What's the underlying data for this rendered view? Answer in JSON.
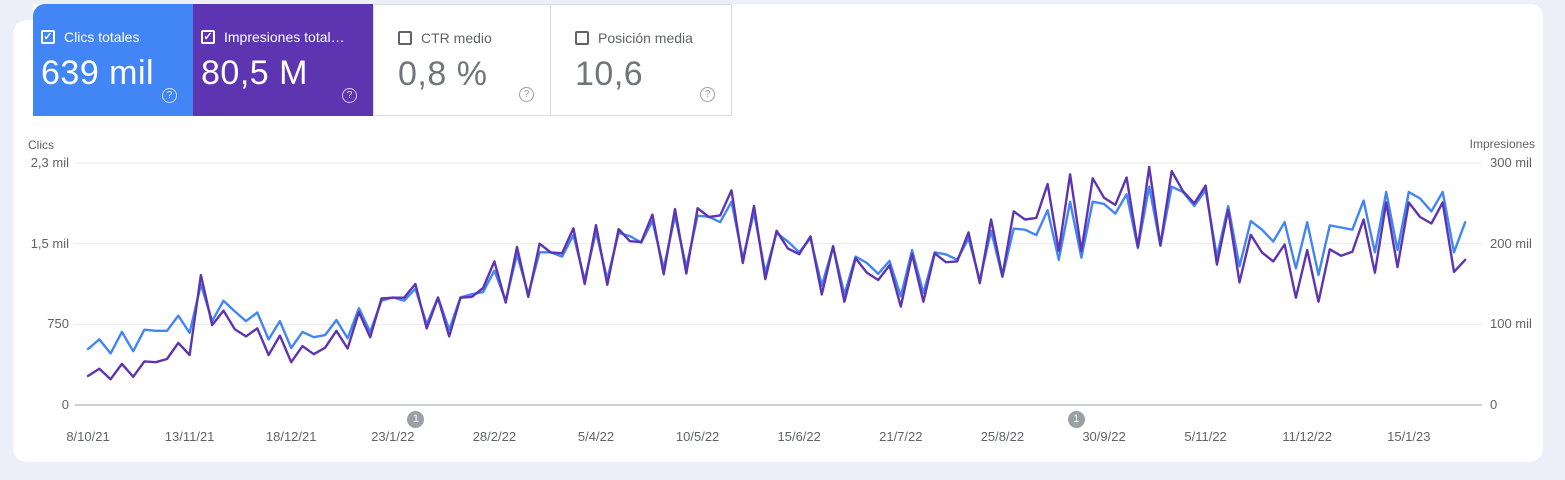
{
  "page": {
    "background_color": "#edeff8",
    "panel_color": "#ffffff",
    "help_glyph": "?",
    "check_glyph": "✓"
  },
  "metric_cards": [
    {
      "id": "clicks",
      "label": "Clics totales",
      "value": "639 mil",
      "checked": true,
      "background": "#4285f4",
      "text_color": "#ffffff"
    },
    {
      "id": "impressions",
      "label": "Impresiones total…",
      "value": "80,5 M",
      "checked": true,
      "background": "#5e35b1",
      "text_color": "#ffffff"
    },
    {
      "id": "ctr",
      "label": "CTR medio",
      "value": "0,8 %",
      "checked": false,
      "background": "#ffffff",
      "text_color": "#70757a"
    },
    {
      "id": "position",
      "label": "Posición media",
      "value": "10,6",
      "checked": false,
      "background": "#ffffff",
      "text_color": "#70757a"
    }
  ],
  "chart_data": {
    "type": "line",
    "grid": true,
    "left_axis": {
      "title": "Clics",
      "ticks": [
        "0",
        "750",
        "1,5 mil",
        "2,3 mil"
      ],
      "range": [
        0,
        2250
      ]
    },
    "right_axis": {
      "title": "Impresiones",
      "ticks": [
        "0",
        "100 mil",
        "200 mil",
        "300 mil"
      ],
      "range": [
        0,
        300000
      ],
      "values_unit": "thousands"
    },
    "x_ticks": [
      "8/10/21",
      "13/11/21",
      "18/12/21",
      "23/1/22",
      "28/2/22",
      "5/4/22",
      "10/5/22",
      "15/6/22",
      "21/7/22",
      "25/8/22",
      "30/9/22",
      "5/11/22",
      "11/12/22",
      "15/1/23"
    ],
    "x_tick_interval_days": 36,
    "sample_interval_days": 4,
    "series": [
      {
        "id": "clicks",
        "name": "Clics totales",
        "axis": "left",
        "color": "#4285f4",
        "values": [
          520,
          610,
          480,
          680,
          500,
          700,
          690,
          690,
          830,
          670,
          1120,
          780,
          970,
          870,
          780,
          860,
          610,
          780,
          530,
          680,
          630,
          650,
          790,
          620,
          900,
          680,
          970,
          1000,
          970,
          1080,
          750,
          1000,
          700,
          1000,
          1030,
          1050,
          1250,
          970,
          1400,
          1030,
          1420,
          1420,
          1380,
          1580,
          1160,
          1610,
          1170,
          1600,
          1570,
          1510,
          1710,
          1270,
          1760,
          1280,
          1760,
          1750,
          1700,
          1890,
          1360,
          1790,
          1230,
          1600,
          1520,
          1420,
          1550,
          1110,
          1470,
          1030,
          1380,
          1320,
          1220,
          1340,
          1010,
          1440,
          1040,
          1420,
          1400,
          1350,
          1550,
          1160,
          1620,
          1190,
          1640,
          1630,
          1580,
          1810,
          1350,
          1890,
          1370,
          1890,
          1870,
          1780,
          1960,
          1460,
          2030,
          1480,
          2030,
          1980,
          1850,
          2000,
          1380,
          1850,
          1290,
          1710,
          1630,
          1520,
          1700,
          1270,
          1700,
          1210,
          1670,
          1650,
          1630,
          1900,
          1420,
          1980,
          1440,
          1980,
          1920,
          1800,
          1980,
          1420,
          1700
        ]
      },
      {
        "id": "impressions",
        "name": "Impresiones totales",
        "axis": "right",
        "color": "#5e35b1",
        "values": [
          36,
          45,
          32,
          51,
          35,
          54,
          53,
          57,
          77,
          62,
          161,
          99,
          117,
          94,
          85,
          95,
          62,
          86,
          53,
          73,
          63,
          71,
          92,
          70,
          115,
          84,
          132,
          133,
          133,
          150,
          95,
          133,
          85,
          133,
          134,
          145,
          178,
          127,
          196,
          134,
          200,
          189,
          188,
          219,
          150,
          223,
          149,
          218,
          203,
          202,
          236,
          162,
          243,
          163,
          244,
          233,
          235,
          266,
          176,
          247,
          156,
          216,
          194,
          187,
          209,
          137,
          197,
          128,
          182,
          164,
          155,
          173,
          122,
          187,
          128,
          188,
          177,
          178,
          214,
          151,
          230,
          160,
          240,
          230,
          232,
          274,
          191,
          286,
          191,
          281,
          257,
          248,
          282,
          196,
          295,
          198,
          290,
          265,
          250,
          272,
          174,
          242,
          152,
          211,
          189,
          178,
          199,
          133,
          192,
          128,
          193,
          185,
          190,
          230,
          164,
          251,
          171,
          251,
          233,
          225,
          251,
          165,
          180
        ]
      }
    ],
    "annotations": [
      {
        "label": "1",
        "day": 116
      },
      {
        "label": "1",
        "day": 350
      }
    ]
  }
}
